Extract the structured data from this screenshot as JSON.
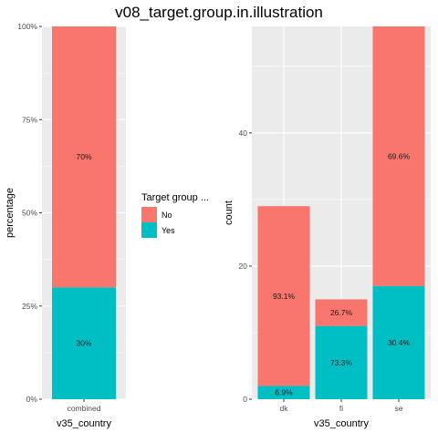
{
  "title": "v08_target.group.in.illustration",
  "legend": {
    "title": "Target group ...",
    "placement": "center",
    "items": [
      {
        "label": "No",
        "color": "#F8766D"
      },
      {
        "label": "Yes",
        "color": "#00BFC4"
      }
    ]
  },
  "chart_data": [
    {
      "type": "bar",
      "stacked": true,
      "title": "",
      "xlabel": "v35_country",
      "ylabel": "percentage",
      "categories": [
        "combined"
      ],
      "series": [
        {
          "name": "No",
          "values": [
            70
          ],
          "labels": [
            "70%"
          ],
          "color": "#F8766D"
        },
        {
          "name": "Yes",
          "values": [
            30
          ],
          "labels": [
            "30%"
          ],
          "color": "#00BFC4"
        }
      ],
      "ylim": [
        0,
        100
      ],
      "yticks": [
        0,
        25,
        50,
        75,
        100
      ],
      "ytick_labels": [
        "0%",
        "25%",
        "50%",
        "75%",
        "100%"
      ],
      "grid": true
    },
    {
      "type": "bar",
      "stacked": true,
      "title": "",
      "xlabel": "v35_country",
      "ylabel": "count",
      "categories": [
        "dk",
        "fi",
        "se"
      ],
      "series": [
        {
          "name": "No",
          "values": [
            27,
            4,
            39
          ],
          "labels": [
            "93.1%",
            "26.7%",
            "69.6%"
          ],
          "color": "#F8766D"
        },
        {
          "name": "Yes",
          "values": [
            2,
            11,
            17
          ],
          "labels": [
            "6.9%",
            "73.3%",
            "30.4%"
          ],
          "color": "#00BFC4"
        }
      ],
      "ylim": [
        0,
        56
      ],
      "yticks": [
        0,
        20,
        40
      ],
      "ytick_labels": [
        "0",
        "20",
        "40"
      ],
      "grid": true
    }
  ]
}
